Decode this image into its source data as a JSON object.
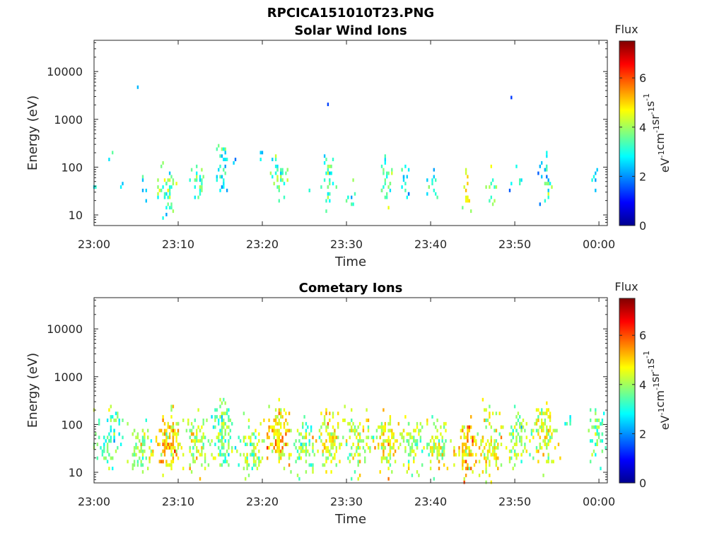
{
  "figure": {
    "title": "RPCICA151010T23.PNG"
  },
  "chart_data": [
    {
      "type": "heatmap",
      "title": "Solar Wind Ions",
      "xlabel": "Time",
      "ylabel": "Energy (eV)",
      "x_ticks": [
        "23:00",
        "23:10",
        "23:20",
        "23:30",
        "23:40",
        "23:50",
        "00:00"
      ],
      "x_range_minutes": [
        0,
        61
      ],
      "y_ticks": [
        "10",
        "100",
        "1000",
        "10000"
      ],
      "y_tick_values": [
        10,
        100,
        1000,
        10000
      ],
      "y_range": [
        6,
        45000
      ],
      "y_scale": "log",
      "colorbar": {
        "label": "Flux",
        "unit_text": "eV-1cm-2sr-1s-1",
        "unit_base": [
          "eV",
          "cm",
          "sr",
          "s"
        ],
        "unit_exp": "-1",
        "ticks": [
          "0",
          "2",
          "4",
          "6"
        ],
        "tick_values": [
          0,
          2,
          4,
          6
        ],
        "range": [
          0,
          7.5
        ],
        "colormap": "jet"
      },
      "clusters": [
        {
          "t": 0,
          "e": 40,
          "w": 0.2,
          "s": 0.1,
          "v": 3,
          "n": 3
        },
        {
          "t": 2,
          "e": 140,
          "w": 0.2,
          "s": 0.1,
          "v": 3,
          "n": 2
        },
        {
          "t": 3.3,
          "e": 40,
          "w": 0.2,
          "s": 0.1,
          "v": 3,
          "n": 2
        },
        {
          "t": 5.3,
          "e": 4200,
          "w": 0.1,
          "s": 0.05,
          "v": 1.3,
          "n": 1
        },
        {
          "t": 5.8,
          "e": 30,
          "w": 0.4,
          "s": 0.3,
          "v": 3,
          "n": 5
        },
        {
          "t": 8.8,
          "e": 35,
          "w": 0.9,
          "s": 0.45,
          "v": 3.6,
          "n": 40
        },
        {
          "t": 12.2,
          "e": 40,
          "w": 0.7,
          "s": 0.35,
          "v": 3.3,
          "n": 22
        },
        {
          "t": 15.2,
          "e": 80,
          "w": 0.8,
          "s": 0.4,
          "v": 3,
          "n": 26
        },
        {
          "t": 15.5,
          "e": 180,
          "w": 0.3,
          "s": 0.2,
          "v": 2.6,
          "n": 4
        },
        {
          "t": 16.8,
          "e": 120,
          "w": 0.2,
          "s": 0.1,
          "v": 2.6,
          "n": 2
        },
        {
          "t": 20,
          "e": 185,
          "w": 0.3,
          "s": 0.1,
          "v": 2.6,
          "n": 3
        },
        {
          "t": 22,
          "e": 60,
          "w": 0.7,
          "s": 0.4,
          "v": 3.6,
          "n": 38
        },
        {
          "t": 25.5,
          "e": 25,
          "w": 0.2,
          "s": 0.1,
          "v": 3,
          "n": 2
        },
        {
          "t": 27.7,
          "e": 2000,
          "w": 0.1,
          "s": 0.05,
          "v": 1.6,
          "n": 1
        },
        {
          "t": 28,
          "e": 55,
          "w": 0.7,
          "s": 0.45,
          "v": 3.2,
          "n": 30
        },
        {
          "t": 30.5,
          "e": 30,
          "w": 0.5,
          "s": 0.4,
          "v": 2.9,
          "n": 8
        },
        {
          "t": 34.8,
          "e": 50,
          "w": 0.6,
          "s": 0.4,
          "v": 3.4,
          "n": 24
        },
        {
          "t": 37.2,
          "e": 50,
          "w": 0.7,
          "s": 0.35,
          "v": 3,
          "n": 14
        },
        {
          "t": 40.2,
          "e": 40,
          "w": 0.6,
          "s": 0.3,
          "v": 3,
          "n": 12
        },
        {
          "t": 44.3,
          "e": 30,
          "w": 0.4,
          "s": 0.3,
          "v": 4.4,
          "n": 14
        },
        {
          "t": 47.3,
          "e": 35,
          "w": 0.5,
          "s": 0.3,
          "v": 3.3,
          "n": 12
        },
        {
          "t": 49.7,
          "e": 2700,
          "w": 0.1,
          "s": 0.05,
          "v": 1.3,
          "n": 1
        },
        {
          "t": 50.3,
          "e": 45,
          "w": 0.6,
          "s": 0.3,
          "v": 3,
          "n": 6
        },
        {
          "t": 53.6,
          "e": 60,
          "w": 0.6,
          "s": 0.4,
          "v": 3,
          "n": 24
        },
        {
          "t": 59.5,
          "e": 50,
          "w": 0.3,
          "s": 0.3,
          "v": 3,
          "n": 6
        }
      ]
    },
    {
      "type": "heatmap",
      "title": "Cometary Ions",
      "xlabel": "Time",
      "ylabel": "Energy (eV)",
      "x_ticks": [
        "23:00",
        "23:10",
        "23:20",
        "23:30",
        "23:40",
        "23:50",
        "00:00"
      ],
      "x_range_minutes": [
        0,
        61
      ],
      "y_ticks": [
        "10",
        "100",
        "1000",
        "10000"
      ],
      "y_tick_values": [
        10,
        100,
        1000,
        10000
      ],
      "y_range": [
        6,
        45000
      ],
      "y_scale": "log",
      "colorbar": {
        "label": "Flux",
        "unit_text": "eV-1cm-2sr-1s-1",
        "unit_base": [
          "eV",
          "cm",
          "sr",
          "s"
        ],
        "unit_exp": "-1",
        "ticks": [
          "0",
          "2",
          "4",
          "6"
        ],
        "tick_values": [
          0,
          2,
          4,
          6
        ],
        "range": [
          0,
          7.5
        ],
        "colormap": "jet"
      },
      "clusters": [
        {
          "t": 0.5,
          "e": 50,
          "w": 0.8,
          "s": 0.5,
          "v": 3.5,
          "n": 22
        },
        {
          "t": 2.3,
          "e": 60,
          "w": 0.9,
          "s": 0.55,
          "v": 3.6,
          "n": 55
        },
        {
          "t": 5.5,
          "e": 30,
          "w": 1.2,
          "s": 0.5,
          "v": 4,
          "n": 70
        },
        {
          "t": 9,
          "e": 40,
          "w": 1.2,
          "s": 0.5,
          "v": 5,
          "n": 110
        },
        {
          "t": 12.3,
          "e": 40,
          "w": 1.1,
          "s": 0.5,
          "v": 4.2,
          "n": 75
        },
        {
          "t": 15.3,
          "e": 60,
          "w": 1.1,
          "s": 0.6,
          "v": 3.7,
          "n": 95
        },
        {
          "t": 18.7,
          "e": 30,
          "w": 1.1,
          "s": 0.5,
          "v": 4,
          "n": 75
        },
        {
          "t": 22,
          "e": 60,
          "w": 1.1,
          "s": 0.55,
          "v": 4.8,
          "n": 115
        },
        {
          "t": 25,
          "e": 30,
          "w": 1.1,
          "s": 0.5,
          "v": 3.9,
          "n": 70
        },
        {
          "t": 28,
          "e": 50,
          "w": 1.2,
          "s": 0.5,
          "v": 4.4,
          "n": 95
        },
        {
          "t": 31.5,
          "e": 45,
          "w": 1.2,
          "s": 0.5,
          "v": 4.1,
          "n": 80
        },
        {
          "t": 34.8,
          "e": 45,
          "w": 1.1,
          "s": 0.5,
          "v": 4.6,
          "n": 90
        },
        {
          "t": 37.7,
          "e": 45,
          "w": 1.1,
          "s": 0.5,
          "v": 4,
          "n": 75
        },
        {
          "t": 40.8,
          "e": 40,
          "w": 1.2,
          "s": 0.5,
          "v": 4.3,
          "n": 80
        },
        {
          "t": 44.3,
          "e": 30,
          "w": 1.1,
          "s": 0.5,
          "v": 5,
          "n": 95
        },
        {
          "t": 47.3,
          "e": 40,
          "w": 1.2,
          "s": 0.55,
          "v": 4.5,
          "n": 95
        },
        {
          "t": 50.3,
          "e": 50,
          "w": 1.1,
          "s": 0.5,
          "v": 3.8,
          "n": 75
        },
        {
          "t": 53.6,
          "e": 70,
          "w": 1.1,
          "s": 0.55,
          "v": 4.3,
          "n": 100
        },
        {
          "t": 56.5,
          "e": 150,
          "w": 0.4,
          "s": 0.2,
          "v": 2.8,
          "n": 6
        },
        {
          "t": 59.7,
          "e": 60,
          "w": 0.8,
          "s": 0.45,
          "v": 3.6,
          "n": 45
        }
      ]
    }
  ]
}
